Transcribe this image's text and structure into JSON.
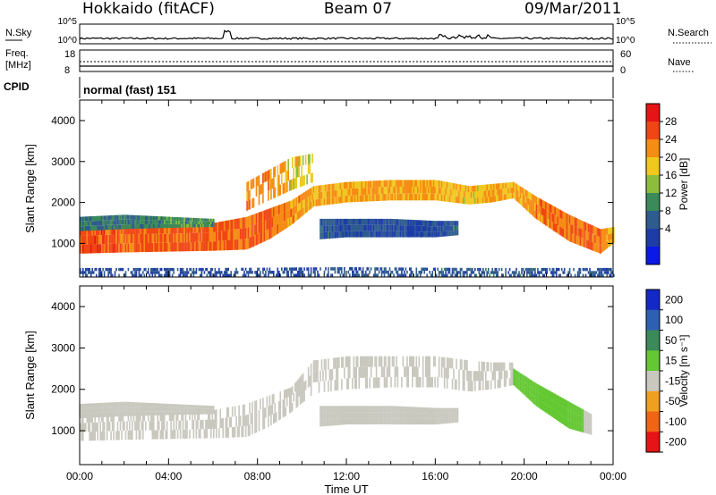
{
  "header": {
    "radar": "Hokkaido (fitACF)",
    "beam": "Beam 07",
    "date": "09/Mar/2011"
  },
  "summary_panels": {
    "nsky_label": "N.Sky",
    "nsearch_label": "N.Search",
    "nsky_ticks": [
      "10^5",
      "10^0"
    ],
    "freq_label": "Freq.",
    "freq_unit": "[MHz]",
    "freq_ticks": [
      "18",
      "8"
    ],
    "nave_label": "Nave",
    "nave_ticks": [
      "60",
      "0"
    ],
    "cpid_label": "CPID",
    "cpid_value": "normal (fast) 151"
  },
  "chart_data": [
    {
      "type": "heatmap",
      "panel": "power",
      "ylabel": "Slant Range [km]",
      "xlabel": "",
      "yticks": [
        "1000",
        "2000",
        "3000",
        "4000"
      ],
      "ylim": [
        180,
        4500
      ],
      "xlim": [
        0,
        24
      ],
      "colorbar": {
        "label": "Power [dB]",
        "ticks": [
          "4",
          "8",
          "12",
          "16",
          "20",
          "24",
          "28"
        ],
        "range": [
          0,
          32
        ],
        "colors": [
          "#0a19e6",
          "#1e3ca8",
          "#2e5c8e",
          "#3a8a5a",
          "#8cbe3c",
          "#f0c81e",
          "#f58c14",
          "#f04614",
          "#e61414"
        ]
      },
      "bands": [
        {
          "name": "main",
          "x": [
            0,
            2,
            4,
            6,
            7.5,
            8.5,
            9.5,
            10.5,
            12,
            14,
            16,
            17.5,
            18.5,
            19.5,
            20.5,
            22,
            23.4,
            24
          ],
          "lo": [
            750,
            780,
            800,
            820,
            850,
            1100,
            1450,
            1900,
            2000,
            2050,
            2050,
            1950,
            2000,
            2100,
            1600,
            1050,
            750,
            1000
          ],
          "hi": [
            1400,
            1450,
            1450,
            1500,
            1650,
            1850,
            2050,
            2400,
            2500,
            2550,
            2550,
            2400,
            2450,
            2500,
            2150,
            1700,
            1350,
            1400
          ],
          "intensity": [
            28,
            27,
            27,
            27,
            26,
            26,
            24,
            22,
            22,
            23,
            22,
            20,
            22,
            22,
            24,
            26,
            26,
            20
          ]
        },
        {
          "name": "upper-scatter",
          "x": [
            7.5,
            8.5,
            9.5,
            10.5
          ],
          "lo": [
            1800,
            2050,
            2300,
            2500
          ],
          "hi": [
            2500,
            2800,
            3100,
            3200
          ],
          "intensity": [
            24,
            24,
            20,
            18
          ]
        },
        {
          "name": "mid-echo",
          "x": [
            10.8,
            12,
            14,
            16,
            17
          ],
          "lo": [
            1100,
            1150,
            1150,
            1150,
            1200
          ],
          "hi": [
            1600,
            1600,
            1600,
            1550,
            1550
          ],
          "intensity": [
            8,
            6,
            6,
            6,
            8
          ]
        },
        {
          "name": "low-edge",
          "x": [
            0,
            2,
            4,
            6
          ],
          "lo": [
            1300,
            1350,
            1380,
            1400
          ],
          "hi": [
            1650,
            1700,
            1650,
            1600
          ],
          "intensity": [
            10,
            10,
            12,
            12
          ]
        },
        {
          "name": "ground-noise",
          "x": [
            0,
            6,
            12,
            18,
            24
          ],
          "lo": [
            180,
            180,
            180,
            180,
            180
          ],
          "hi": [
            400,
            400,
            420,
            400,
            400
          ],
          "intensity": [
            6,
            6,
            6,
            8,
            6
          ]
        }
      ]
    },
    {
      "type": "heatmap",
      "panel": "velocity",
      "ylabel": "Slant Range [km]",
      "xlabel": "Time UT",
      "xticks": [
        "00:00",
        "04:00",
        "08:00",
        "12:00",
        "16:00",
        "20:00",
        "00:00"
      ],
      "yticks": [
        "1000",
        "2000",
        "3000",
        "4000"
      ],
      "ylim": [
        180,
        4500
      ],
      "xlim": [
        0,
        24
      ],
      "colorbar": {
        "label": "Velocity [m s⁻¹]",
        "ticks": [
          "200",
          "100",
          "50",
          "15",
          "-15",
          "-50",
          "-100",
          "-200"
        ],
        "colors": [
          "#1428c8",
          "#2d5fb4",
          "#3a8a5a",
          "#64c832",
          "#c8c8be",
          "#f0a01e",
          "#f06414",
          "#e61414"
        ]
      },
      "bands": [
        {
          "name": "ground-scatter",
          "x": [
            0,
            2,
            4,
            6,
            7.5,
            8.5,
            9.5,
            10.5,
            12,
            14,
            16,
            17.5,
            18.5,
            19.5
          ],
          "lo": [
            750,
            780,
            800,
            820,
            850,
            1100,
            1450,
            1900,
            2000,
            2050,
            2050,
            1950,
            2000,
            2100
          ],
          "hi": [
            1400,
            1450,
            1450,
            1500,
            1650,
            1850,
            2050,
            2700,
            2800,
            2800,
            2800,
            2700,
            2650,
            2650
          ],
          "velocity": [
            0,
            0,
            0,
            0,
            0,
            0,
            0,
            0,
            0,
            0,
            0,
            0,
            0,
            0
          ]
        },
        {
          "name": "fading-slope",
          "x": [
            19.5,
            20.5,
            22,
            23
          ],
          "lo": [
            2100,
            1600,
            1050,
            900
          ],
          "hi": [
            2500,
            2150,
            1700,
            1400
          ],
          "velocity": [
            40,
            40,
            40,
            0
          ]
        },
        {
          "name": "mid-gs",
          "x": [
            10.8,
            12,
            14,
            16,
            17
          ],
          "lo": [
            1100,
            1150,
            1150,
            1150,
            1200
          ],
          "hi": [
            1600,
            1600,
            1600,
            1550,
            1550
          ],
          "velocity": [
            0,
            0,
            0,
            0,
            0
          ]
        },
        {
          "name": "low-edge",
          "x": [
            0,
            2,
            4,
            6
          ],
          "lo": [
            1300,
            1350,
            1380,
            1400
          ],
          "hi": [
            1650,
            1700,
            1650,
            1600
          ],
          "velocity": [
            0,
            0,
            0,
            0
          ]
        }
      ]
    }
  ]
}
